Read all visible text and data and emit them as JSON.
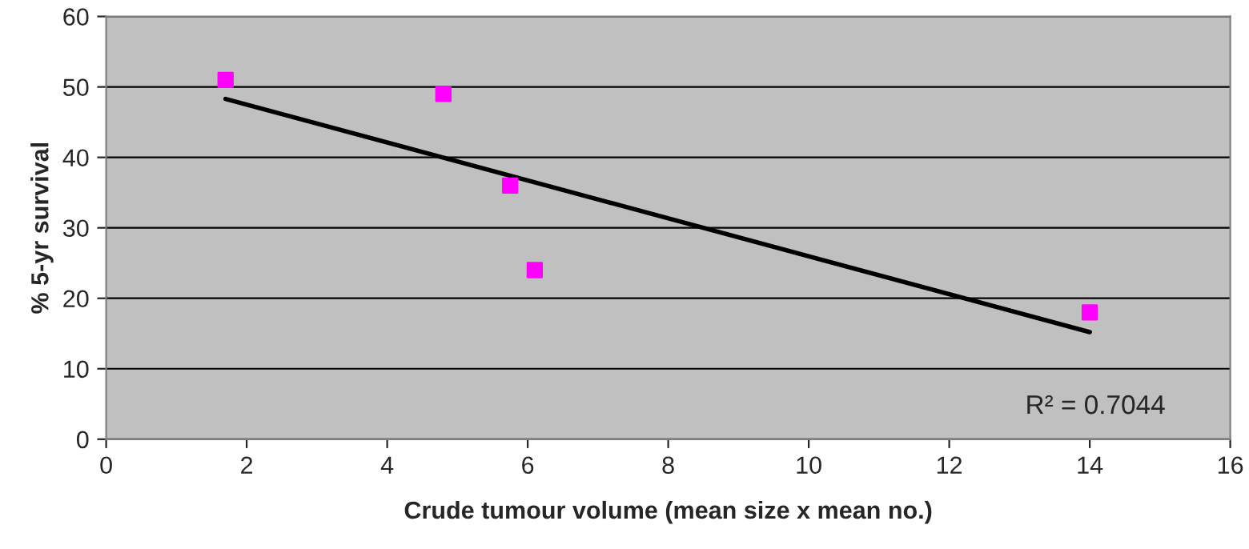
{
  "chart_data": {
    "type": "scatter",
    "xlabel": "Crude tumour volume (mean size x mean no.)",
    "ylabel": "% 5-yr survival",
    "xlim": [
      0,
      16
    ],
    "xticks": [
      0,
      2,
      4,
      6,
      8,
      10,
      12,
      14,
      16
    ],
    "ylim": [
      0,
      60
    ],
    "yticks": [
      0,
      10,
      20,
      30,
      40,
      50,
      60
    ],
    "grid": "y",
    "marker": "square",
    "series": [
      {
        "color": "#ff00ff",
        "x": [
          1.7,
          4.8,
          5.75,
          6.1,
          14
        ],
        "values": [
          51,
          49,
          36,
          24,
          18
        ]
      },
      {
        "type": "line",
        "color": "#000000",
        "marker": "none",
        "x": [
          1.7,
          14
        ],
        "values": [
          48.3,
          15.2
        ]
      }
    ],
    "annotations": [
      "R² = 0.7044"
    ]
  }
}
